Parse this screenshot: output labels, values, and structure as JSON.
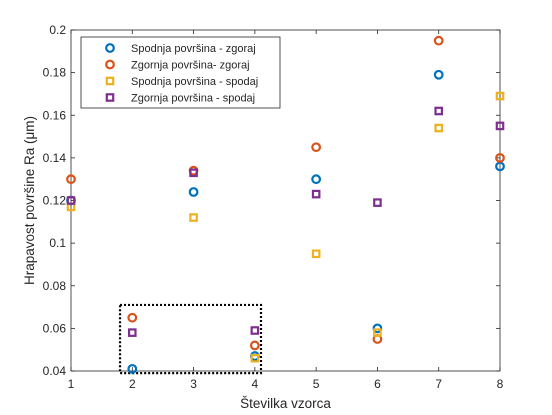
{
  "chart_data": {
    "type": "scatter",
    "xlabel": "Številka vzorca",
    "ylabel": "Hrapavost površine Ra (μm)",
    "xlim": [
      1,
      8
    ],
    "ylim": [
      0.04,
      0.2
    ],
    "xticks": [
      "1",
      "2",
      "3",
      "4",
      "5",
      "6",
      "7",
      "8"
    ],
    "yticks": [
      "0.04",
      "0.06",
      "0.08",
      "0.1",
      "0.12",
      "0.14",
      "0.16",
      "0.18",
      "0.2"
    ],
    "ytick_values": [
      0.04,
      0.06,
      0.08,
      0.1,
      0.12,
      0.14,
      0.16,
      0.18,
      0.2
    ],
    "grid": false,
    "legend_position": "top-left",
    "annotation": "dotted rectangle around samples 2–4, y 0.04–0.07",
    "highlight_box": {
      "x": [
        1.8,
        4.1
      ],
      "y": [
        0.039,
        0.071
      ]
    },
    "series": [
      {
        "name": "Spodnja površina - zgoraj",
        "marker": "circle",
        "color": "#0072BD",
        "x": [
          1,
          2,
          3,
          4,
          5,
          6,
          7,
          8
        ],
        "y": [
          0.12,
          0.041,
          0.124,
          0.047,
          0.13,
          0.06,
          0.179,
          0.136
        ]
      },
      {
        "name": "Zgornja površina- zgoraj",
        "marker": "circle",
        "color": "#D95319",
        "x": [
          1,
          2,
          3,
          4,
          5,
          6,
          7,
          8
        ],
        "y": [
          0.13,
          0.065,
          0.134,
          0.052,
          0.145,
          0.055,
          0.195,
          0.14
        ]
      },
      {
        "name": "Spodnja površina - spodaj",
        "marker": "square",
        "color": "#EDB120",
        "x": [
          1,
          3,
          4,
          5,
          6,
          7,
          8
        ],
        "y": [
          0.117,
          0.112,
          0.046,
          0.095,
          0.058,
          0.154,
          0.169
        ]
      },
      {
        "name": "Zgornja površina - spodaj",
        "marker": "square",
        "color": "#7E2F8E",
        "x": [
          1,
          2,
          3,
          4,
          5,
          6,
          7,
          8
        ],
        "y": [
          0.12,
          0.058,
          0.133,
          0.059,
          0.123,
          0.119,
          0.162,
          0.155
        ]
      }
    ]
  }
}
